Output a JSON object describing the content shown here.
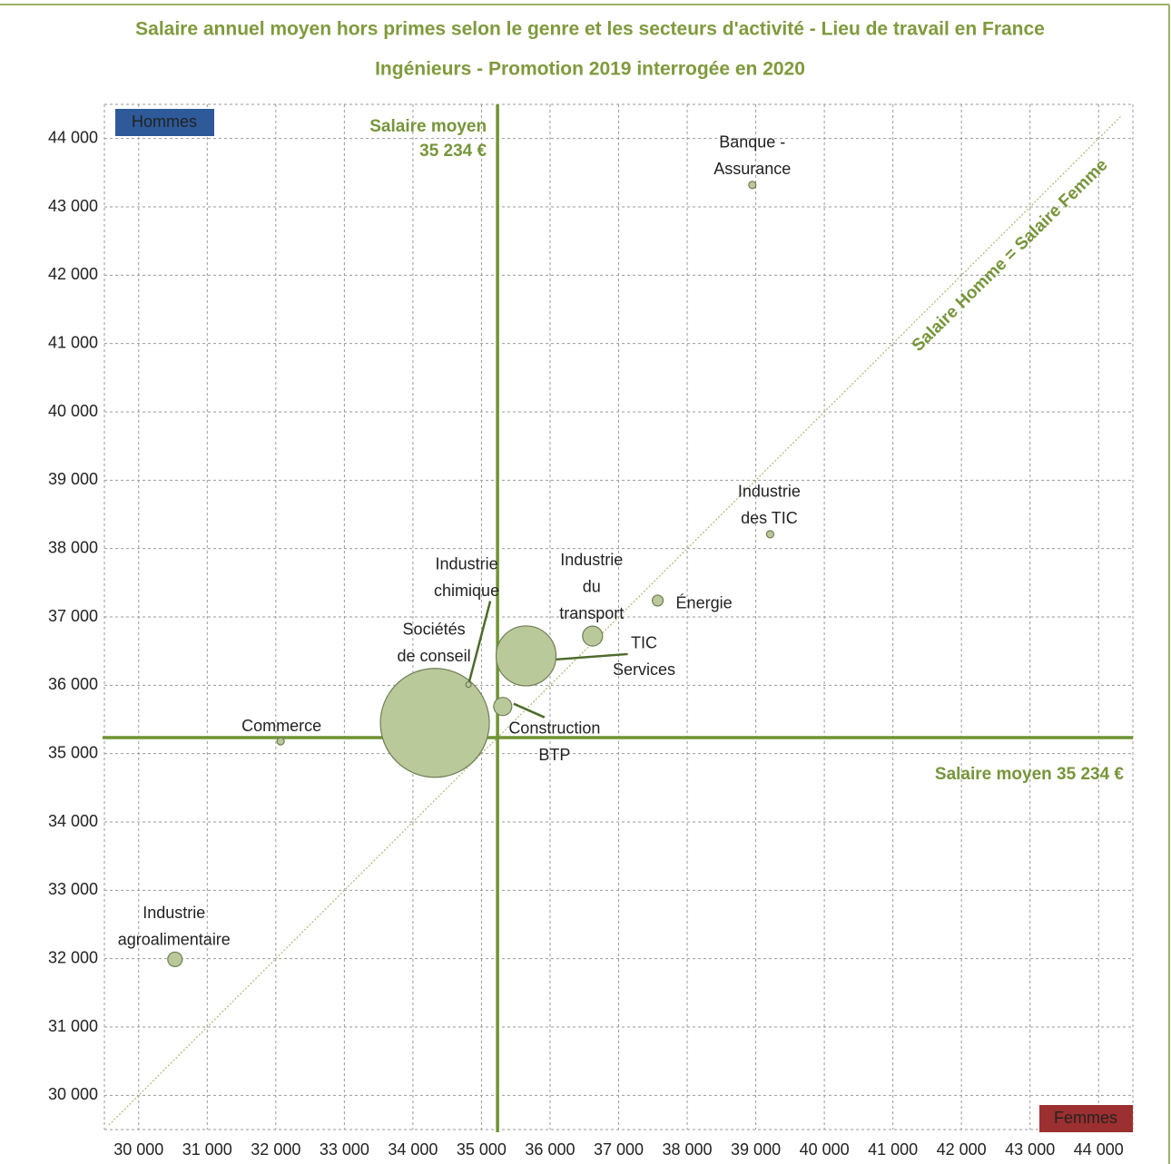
{
  "chart_data": {
    "type": "bubble",
    "title": [
      "Salaire annuel moyen hors primes selon le genre et les secteurs d'activité - Lieu de travail en France",
      "Ingénieurs - Promotion 2019 interrogée en 2020"
    ],
    "y_axis_label": "Hommes",
    "x_axis_label": "Femmes",
    "diagonal_label": "Salaire Homme = Salaire Femme",
    "mean": 35234,
    "mean_x_label": [
      "Salaire moyen",
      "35 234 €"
    ],
    "mean_y_label": "Salaire moyen 35 234 €",
    "color": "#b9c99a",
    "grid": true,
    "xlim": [
      29500,
      44500
    ],
    "ylim": [
      29500,
      44500
    ],
    "xticks": [
      {
        "value": 30000,
        "label": "30 000"
      },
      {
        "value": 31000,
        "label": "31 000"
      },
      {
        "value": 32000,
        "label": "32 000"
      },
      {
        "value": 33000,
        "label": "33 000"
      },
      {
        "value": 34000,
        "label": "34 000"
      },
      {
        "value": 35000,
        "label": "35 000"
      },
      {
        "value": 36000,
        "label": "36 000"
      },
      {
        "value": 37000,
        "label": "37 000"
      },
      {
        "value": 38000,
        "label": "38 000"
      },
      {
        "value": 39000,
        "label": "39 000"
      },
      {
        "value": 40000,
        "label": "40 000"
      },
      {
        "value": 41000,
        "label": "41 000"
      },
      {
        "value": 42000,
        "label": "42 000"
      },
      {
        "value": 43000,
        "label": "43 000"
      },
      {
        "value": 44000,
        "label": "44 000"
      }
    ],
    "yticks": [
      {
        "value": 30000,
        "label": "30 000"
      },
      {
        "value": 31000,
        "label": "31 000"
      },
      {
        "value": 32000,
        "label": "32 000"
      },
      {
        "value": 33000,
        "label": "33 000"
      },
      {
        "value": 34000,
        "label": "34 000"
      },
      {
        "value": 35000,
        "label": "35 000"
      },
      {
        "value": 36000,
        "label": "36 000"
      },
      {
        "value": 37000,
        "label": "37 000"
      },
      {
        "value": 38000,
        "label": "38 000"
      },
      {
        "value": 39000,
        "label": "39 000"
      },
      {
        "value": 40000,
        "label": "40 000"
      },
      {
        "value": 41000,
        "label": "41 000"
      },
      {
        "value": 42000,
        "label": "42 000"
      },
      {
        "value": 43000,
        "label": "43 000"
      },
      {
        "value": 44000,
        "label": "44 000"
      }
    ],
    "points": [
      {
        "label": [
          "Banque -",
          "Assurance"
        ],
        "x": 38950,
        "y": 43320,
        "size": 16
      },
      {
        "label": [
          "Industrie",
          "des TIC"
        ],
        "x": 39210,
        "y": 38210,
        "size": 16
      },
      {
        "label": [
          "Énergie"
        ],
        "x": 37570,
        "y": 37240,
        "size": 36
      },
      {
        "label": [
          "Industrie",
          "du",
          "transport"
        ],
        "x": 36620,
        "y": 36720,
        "size": 121
      },
      {
        "label": [
          "TIC",
          "Services"
        ],
        "x": 35650,
        "y": 36430,
        "size": 1089
      },
      {
        "label": [
          "Construction",
          "BTP"
        ],
        "x": 35310,
        "y": 35690,
        "size": 100
      },
      {
        "label": [
          "Sociétés",
          "de conseil"
        ],
        "x": 34320,
        "y": 35450,
        "size": 3600
      },
      {
        "label": [
          "Industrie",
          "chimique"
        ],
        "x": 34810,
        "y": 36010,
        "size": 9
      },
      {
        "label": [
          "Commerce"
        ],
        "x": 32070,
        "y": 35180,
        "size": 16
      },
      {
        "label": [
          "Industrie",
          "agroalimentaire"
        ],
        "x": 30530,
        "y": 31990,
        "size": 64
      }
    ]
  }
}
